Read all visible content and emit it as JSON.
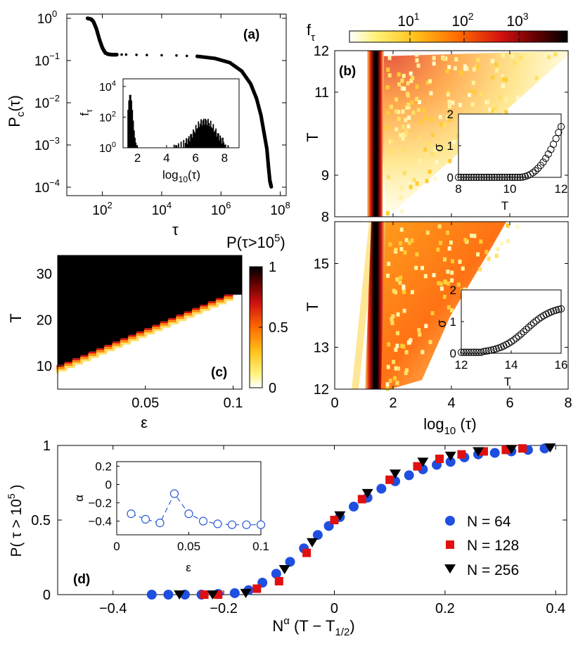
{
  "chart_data": [
    {
      "panel": "a",
      "type": "scatter",
      "label": "(a)",
      "xlabel": "τ",
      "ylabel_main": "P",
      "ylabel_sub": "c",
      "ylabel_rest": "(τ)",
      "xscale": "log",
      "yscale": "log",
      "xlim_log10": [
        0.8,
        8.2
      ],
      "ylim_log10": [
        -4.2,
        0.1
      ],
      "xticks": [
        {
          "e": "2"
        },
        {
          "e": "4"
        },
        {
          "e": "6"
        },
        {
          "e": "8"
        }
      ],
      "yticks": [
        {
          "e": "0"
        },
        {
          "e": "-1"
        },
        {
          "e": "-2"
        },
        {
          "e": "-3"
        },
        {
          "e": "-4"
        }
      ],
      "tick_base": "10",
      "curve_log10": [
        [
          1.5,
          0
        ],
        [
          1.62,
          -0.02
        ],
        [
          1.7,
          -0.08
        ],
        [
          1.8,
          -0.25
        ],
        [
          1.9,
          -0.5
        ],
        [
          2.0,
          -0.7
        ],
        [
          2.1,
          -0.82
        ],
        [
          2.2,
          -0.85
        ],
        [
          2.3,
          -0.86
        ],
        [
          2.5,
          -0.86
        ],
        [
          2.8,
          -0.86
        ],
        [
          3.5,
          -0.87
        ],
        [
          4.5,
          -0.88
        ],
        [
          5.2,
          -0.9
        ],
        [
          5.8,
          -0.95
        ],
        [
          6.3,
          -1.05
        ],
        [
          6.7,
          -1.25
        ],
        [
          7.0,
          -1.55
        ],
        [
          7.2,
          -1.9
        ],
        [
          7.35,
          -2.3
        ],
        [
          7.45,
          -2.7
        ],
        [
          7.55,
          -3.1
        ],
        [
          7.6,
          -3.5
        ],
        [
          7.65,
          -3.85
        ],
        [
          7.7,
          -4.0
        ]
      ],
      "inset": {
        "type": "bar",
        "xlabel_main": "log",
        "xlabel_sub": "10",
        "xlabel_rest": "(τ)",
        "ylabel_main": "f",
        "ylabel_sub": "τ",
        "xlim": [
          1,
          9
        ],
        "ylim_log10": [
          0,
          4.5
        ],
        "xticks": [
          "2",
          "4",
          "6",
          "8"
        ],
        "yticks": [
          {
            "e": "0"
          },
          {
            "e": "2"
          },
          {
            "e": "4"
          }
        ],
        "tick_base": "10"
      }
    },
    {
      "panel": "b",
      "type": "heatmap",
      "label": "(b)",
      "colorbar": {
        "label_main": "f",
        "label_sub": "τ",
        "ticks": [
          {
            "e": "1"
          },
          {
            "e": "2"
          },
          {
            "e": "3"
          }
        ],
        "tick_base": "10"
      },
      "top": {
        "ylabel": "T",
        "ylim": [
          8,
          12
        ],
        "yticks": [
          "8",
          "9",
          "11",
          "12"
        ],
        "inset": {
          "xlabel": "T",
          "ylabel": "σ",
          "xlim": [
            8,
            12
          ],
          "ylim": [
            0,
            2
          ],
          "xticks": [
            "8",
            "10",
            "12"
          ],
          "yticks": [
            "0",
            "1",
            "2"
          ]
        }
      },
      "bottom": {
        "ylabel": "T",
        "ylim": [
          12,
          16
        ],
        "yticks": [
          "12",
          "13",
          "15"
        ],
        "xlabel_main": "log",
        "xlabel_sub": "10",
        "xlabel_rest": " (τ)",
        "xlim": [
          0,
          8
        ],
        "xticks": [
          "0",
          "2",
          "4",
          "6",
          "8"
        ],
        "inset": {
          "xlabel": "T",
          "ylabel": "σ",
          "xlim": [
            12,
            16
          ],
          "ylim": [
            0,
            2
          ],
          "xticks": [
            "12",
            "14",
            "16"
          ],
          "yticks": [
            "0",
            "1",
            "2"
          ]
        }
      }
    },
    {
      "panel": "c",
      "type": "heatmap",
      "label": "(c)",
      "title_main": "P(τ>10",
      "title_sup": "5",
      "title_rest": ")",
      "xlabel": "ε",
      "ylabel": "T",
      "xlim": [
        0,
        0.105
      ],
      "ylim": [
        5,
        34
      ],
      "xticks": [
        "0.05",
        "0.1"
      ],
      "yticks": [
        "10",
        "20",
        "30"
      ],
      "colorbar_ticks": [
        "0",
        "0.5",
        "1"
      ],
      "boundary": [
        [
          0.0,
          9.5
        ],
        [
          0.1,
          25.5
        ]
      ]
    },
    {
      "panel": "d",
      "type": "scatter",
      "label": "(d)",
      "xlabel_main": "N",
      "xlabel_sup": "α",
      "xlabel_rest": " (T − T",
      "xlabel_sub": "1/2",
      "xlabel_end": ")",
      "ylabel_main": "P( τ > 10",
      "ylabel_sup": "5",
      "ylabel_end": " )",
      "xlim": [
        -0.5,
        0.42
      ],
      "ylim": [
        0,
        1
      ],
      "xticks": [
        "−0.4",
        "−0.2",
        "0",
        "0.2",
        "0.4"
      ],
      "yticks": [
        "0",
        "0.5",
        "1"
      ],
      "series": [
        {
          "name": "N = 64",
          "color": "#1f4fe0",
          "marker": "circle",
          "x": [
            -0.33,
            -0.3,
            -0.27,
            -0.24,
            -0.21,
            -0.18,
            -0.155,
            -0.13,
            -0.105,
            -0.08,
            -0.055,
            -0.03,
            -0.01,
            0.01,
            0.035,
            0.06,
            0.085,
            0.11,
            0.135,
            0.16,
            0.185,
            0.21,
            0.235,
            0.26,
            0.29,
            0.32,
            0.35,
            0.38
          ],
          "y": [
            0.0,
            0.0,
            0.0,
            0.0,
            0.005,
            0.01,
            0.03,
            0.08,
            0.14,
            0.22,
            0.31,
            0.4,
            0.46,
            0.52,
            0.59,
            0.65,
            0.71,
            0.76,
            0.8,
            0.84,
            0.87,
            0.89,
            0.92,
            0.94,
            0.95,
            0.96,
            0.97,
            0.98
          ]
        },
        {
          "name": "N = 128",
          "color": "#e01010",
          "marker": "square",
          "x": [
            -0.235,
            -0.21,
            -0.14,
            -0.1,
            -0.05,
            0.0,
            0.05,
            0.1,
            0.15,
            0.19,
            0.23,
            0.27,
            0.31,
            0.34
          ],
          "y": [
            0.0,
            0.0,
            0.04,
            0.09,
            0.28,
            0.5,
            0.64,
            0.77,
            0.86,
            0.91,
            0.94,
            0.96,
            0.97,
            0.98
          ]
        },
        {
          "name": "N = 256",
          "color": "#000000",
          "marker": "triangle",
          "x": [
            -0.28,
            -0.22,
            -0.16,
            -0.09,
            -0.04,
            0.01,
            0.06,
            0.11,
            0.16,
            0.21,
            0.26,
            0.32,
            0.39
          ],
          "y": [
            0.0,
            0.0,
            0.01,
            0.17,
            0.35,
            0.53,
            0.68,
            0.81,
            0.89,
            0.93,
            0.96,
            0.975,
            0.985
          ]
        }
      ],
      "inset": {
        "type": "line",
        "xlabel": "ε",
        "ylabel": "α",
        "xlim": [
          0,
          0.1
        ],
        "ylim": [
          -0.55,
          0.25
        ],
        "xticks": [
          "0",
          "0.05",
          "0.1"
        ],
        "yticks": [
          "0.2",
          "0",
          "−0.2",
          "−0.4"
        ],
        "color": "#2a5ad8",
        "x": [
          0.01,
          0.02,
          0.03,
          0.04,
          0.05,
          0.06,
          0.07,
          0.08,
          0.09,
          0.1
        ],
        "y": [
          -0.32,
          -0.38,
          -0.42,
          -0.1,
          -0.32,
          -0.4,
          -0.43,
          -0.44,
          -0.44,
          -0.44
        ]
      }
    }
  ]
}
